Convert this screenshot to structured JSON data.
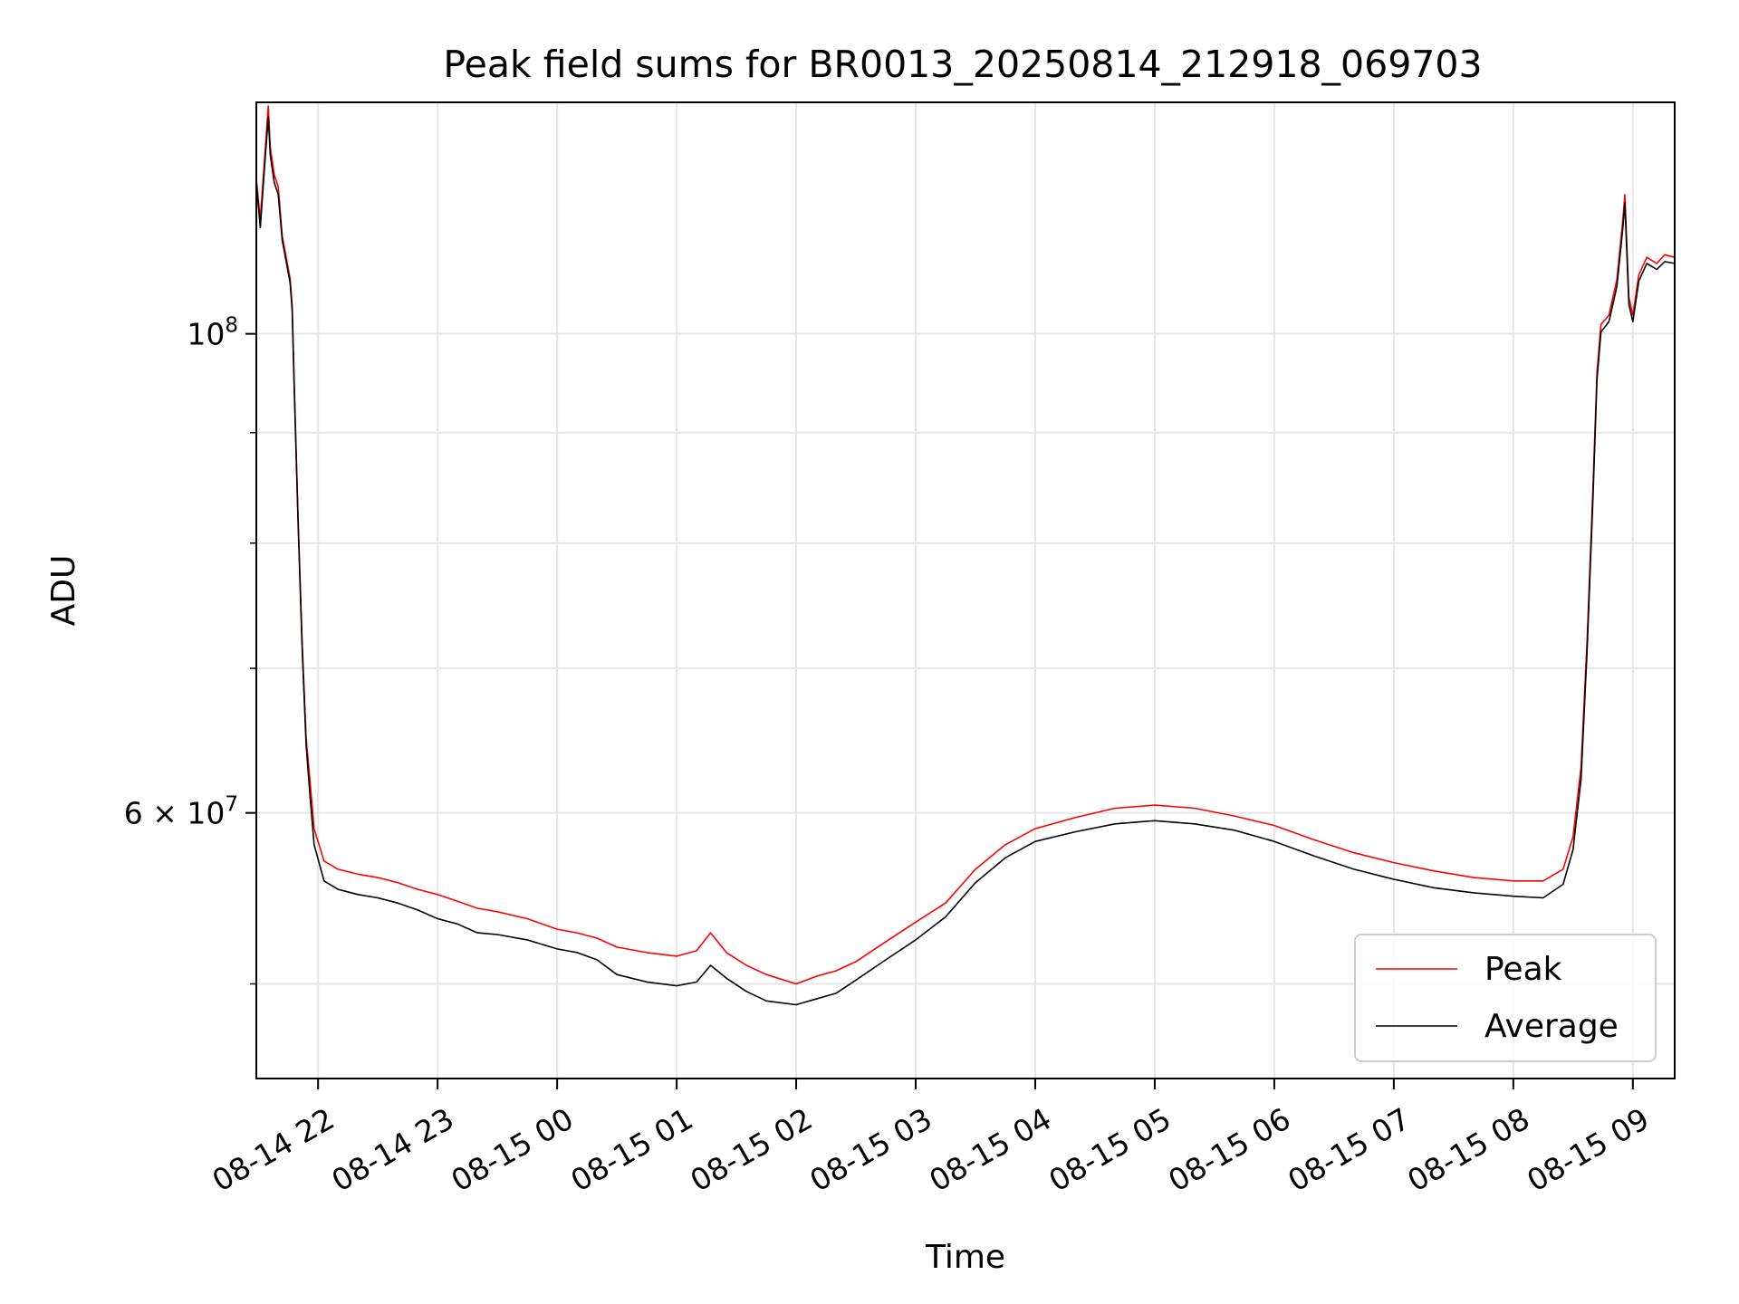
{
  "chart_data": {
    "type": "line",
    "title": "Peak field sums for BR0013_20250814_212918_069703",
    "xlabel": "Time",
    "ylabel": "ADU",
    "yscale": "log",
    "ylim": [
      45200000,
      128000000
    ],
    "xlim": [
      "2025-08-14 21:29",
      "2025-08-15 09:21"
    ],
    "grid": true,
    "legend_position": "lower-right",
    "x_tick_labels": [
      "08-14 22",
      "08-14 23",
      "08-15 00",
      "08-15 01",
      "08-15 02",
      "08-15 03",
      "08-15 04",
      "08-15 05",
      "08-15 06",
      "08-15 07",
      "08-15 08",
      "08-15 09"
    ],
    "x_tick_values": [
      "2025-08-14 22:00",
      "2025-08-14 23:00",
      "2025-08-15 00:00",
      "2025-08-15 01:00",
      "2025-08-15 02:00",
      "2025-08-15 03:00",
      "2025-08-15 04:00",
      "2025-08-15 05:00",
      "2025-08-15 06:00",
      "2025-08-15 07:00",
      "2025-08-15 08:00",
      "2025-08-15 09:00"
    ],
    "y_major_ticks": [
      {
        "value": 100000000,
        "mantissa": "",
        "exponent": "8"
      },
      {
        "value": 60000000,
        "mantissa": "6 × ",
        "exponent": "7"
      }
    ],
    "y_minor_ticks": [
      50000000,
      70000000,
      80000000,
      90000000
    ],
    "series": [
      {
        "name": "Peak",
        "color": "#ff0000",
        "points": [
          [
            "2025-08-14 21:29",
            118000000
          ],
          [
            "2025-08-14 21:31",
            113000000
          ],
          [
            "2025-08-14 21:33",
            120000000
          ],
          [
            "2025-08-14 21:35",
            127500000
          ],
          [
            "2025-08-14 21:36",
            122000000
          ],
          [
            "2025-08-14 21:38",
            118500000
          ],
          [
            "2025-08-14 21:40",
            117000000
          ],
          [
            "2025-08-14 21:42",
            111000000
          ],
          [
            "2025-08-14 21:44",
            108500000
          ],
          [
            "2025-08-14 21:46",
            106000000
          ],
          [
            "2025-08-14 21:47",
            103000000
          ],
          [
            "2025-08-14 21:48",
            95000000
          ],
          [
            "2025-08-14 21:50",
            82000000
          ],
          [
            "2025-08-14 21:52",
            72000000
          ],
          [
            "2025-08-14 21:54",
            65000000
          ],
          [
            "2025-08-14 21:56",
            62000000
          ],
          [
            "2025-08-14 21:58",
            59000000
          ],
          [
            "2025-08-14 22:03",
            57000000
          ],
          [
            "2025-08-14 22:10",
            56500000
          ],
          [
            "2025-08-14 22:20",
            56200000
          ],
          [
            "2025-08-14 22:30",
            56000000
          ],
          [
            "2025-08-14 22:40",
            55700000
          ],
          [
            "2025-08-14 22:50",
            55300000
          ],
          [
            "2025-08-14 23:00",
            55000000
          ],
          [
            "2025-08-14 23:10",
            54600000
          ],
          [
            "2025-08-14 23:20",
            54200000
          ],
          [
            "2025-08-14 23:30",
            54000000
          ],
          [
            "2025-08-14 23:45",
            53600000
          ],
          [
            "2025-08-15 00:00",
            53000000
          ],
          [
            "2025-08-15 00:10",
            52800000
          ],
          [
            "2025-08-15 00:20",
            52500000
          ],
          [
            "2025-08-15 00:30",
            52000000
          ],
          [
            "2025-08-15 00:45",
            51700000
          ],
          [
            "2025-08-15 01:00",
            51500000
          ],
          [
            "2025-08-15 01:10",
            51800000
          ],
          [
            "2025-08-15 01:17",
            52800000
          ],
          [
            "2025-08-15 01:25",
            51700000
          ],
          [
            "2025-08-15 01:35",
            51000000
          ],
          [
            "2025-08-15 01:45",
            50500000
          ],
          [
            "2025-08-15 02:00",
            50000000
          ],
          [
            "2025-08-15 02:10",
            50400000
          ],
          [
            "2025-08-15 02:20",
            50700000
          ],
          [
            "2025-08-15 02:30",
            51200000
          ],
          [
            "2025-08-15 02:45",
            52300000
          ],
          [
            "2025-08-15 03:00",
            53400000
          ],
          [
            "2025-08-15 03:15",
            54500000
          ],
          [
            "2025-08-15 03:30",
            56500000
          ],
          [
            "2025-08-15 03:45",
            58000000
          ],
          [
            "2025-08-15 04:00",
            59000000
          ],
          [
            "2025-08-15 04:20",
            59700000
          ],
          [
            "2025-08-15 04:40",
            60300000
          ],
          [
            "2025-08-15 05:00",
            60500000
          ],
          [
            "2025-08-15 05:20",
            60300000
          ],
          [
            "2025-08-15 05:40",
            59800000
          ],
          [
            "2025-08-15 06:00",
            59200000
          ],
          [
            "2025-08-15 06:20",
            58300000
          ],
          [
            "2025-08-15 06:40",
            57500000
          ],
          [
            "2025-08-15 07:00",
            56900000
          ],
          [
            "2025-08-15 07:20",
            56400000
          ],
          [
            "2025-08-15 07:40",
            56000000
          ],
          [
            "2025-08-15 08:00",
            55800000
          ],
          [
            "2025-08-15 08:15",
            55800000
          ],
          [
            "2025-08-15 08:25",
            56500000
          ],
          [
            "2025-08-15 08:30",
            58500000
          ],
          [
            "2025-08-15 08:34",
            63000000
          ],
          [
            "2025-08-15 08:37",
            72000000
          ],
          [
            "2025-08-15 08:40",
            85000000
          ],
          [
            "2025-08-15 08:42",
            96000000
          ],
          [
            "2025-08-15 08:44",
            101000000
          ],
          [
            "2025-08-15 08:48",
            102000000
          ],
          [
            "2025-08-15 08:52",
            106000000
          ],
          [
            "2025-08-15 08:55",
            113000000
          ],
          [
            "2025-08-15 08:56",
            116000000
          ],
          [
            "2025-08-15 08:58",
            104000000
          ],
          [
            "2025-08-15 09:00",
            102000000
          ],
          [
            "2025-08-15 09:03",
            106500000
          ],
          [
            "2025-08-15 09:07",
            108500000
          ],
          [
            "2025-08-15 09:12",
            107800000
          ],
          [
            "2025-08-15 09:16",
            108800000
          ],
          [
            "2025-08-15 09:21",
            108500000
          ]
        ]
      },
      {
        "name": "Average",
        "color": "#000000",
        "points": [
          [
            "2025-08-14 21:29",
            117500000
          ],
          [
            "2025-08-14 21:31",
            112000000
          ],
          [
            "2025-08-14 21:33",
            119000000
          ],
          [
            "2025-08-14 21:35",
            126000000
          ],
          [
            "2025-08-14 21:36",
            121000000
          ],
          [
            "2025-08-14 21:38",
            117500000
          ],
          [
            "2025-08-14 21:40",
            116000000
          ],
          [
            "2025-08-14 21:42",
            110500000
          ],
          [
            "2025-08-14 21:44",
            108000000
          ],
          [
            "2025-08-14 21:46",
            105500000
          ],
          [
            "2025-08-14 21:47",
            102500000
          ],
          [
            "2025-08-14 21:48",
            94500000
          ],
          [
            "2025-08-14 21:50",
            81500000
          ],
          [
            "2025-08-14 21:52",
            71500000
          ],
          [
            "2025-08-14 21:54",
            64500000
          ],
          [
            "2025-08-14 21:56",
            61000000
          ],
          [
            "2025-08-14 21:58",
            58000000
          ],
          [
            "2025-08-14 22:03",
            55800000
          ],
          [
            "2025-08-14 22:10",
            55300000
          ],
          [
            "2025-08-14 22:20",
            55000000
          ],
          [
            "2025-08-14 22:30",
            54800000
          ],
          [
            "2025-08-14 22:40",
            54500000
          ],
          [
            "2025-08-14 22:50",
            54100000
          ],
          [
            "2025-08-14 23:00",
            53600000
          ],
          [
            "2025-08-14 23:10",
            53300000
          ],
          [
            "2025-08-14 23:20",
            52800000
          ],
          [
            "2025-08-14 23:30",
            52700000
          ],
          [
            "2025-08-14 23:45",
            52400000
          ],
          [
            "2025-08-15 00:00",
            51900000
          ],
          [
            "2025-08-15 00:10",
            51700000
          ],
          [
            "2025-08-15 00:20",
            51300000
          ],
          [
            "2025-08-15 00:30",
            50500000
          ],
          [
            "2025-08-15 00:45",
            50100000
          ],
          [
            "2025-08-15 01:00",
            49900000
          ],
          [
            "2025-08-15 01:10",
            50100000
          ],
          [
            "2025-08-15 01:17",
            51000000
          ],
          [
            "2025-08-15 01:25",
            50300000
          ],
          [
            "2025-08-15 01:35",
            49600000
          ],
          [
            "2025-08-15 01:45",
            49100000
          ],
          [
            "2025-08-15 02:00",
            48900000
          ],
          [
            "2025-08-15 02:10",
            49200000
          ],
          [
            "2025-08-15 02:20",
            49500000
          ],
          [
            "2025-08-15 02:30",
            50200000
          ],
          [
            "2025-08-15 02:45",
            51300000
          ],
          [
            "2025-08-15 03:00",
            52400000
          ],
          [
            "2025-08-15 03:15",
            53700000
          ],
          [
            "2025-08-15 03:30",
            55700000
          ],
          [
            "2025-08-15 03:45",
            57200000
          ],
          [
            "2025-08-15 04:00",
            58200000
          ],
          [
            "2025-08-15 04:20",
            58800000
          ],
          [
            "2025-08-15 04:40",
            59300000
          ],
          [
            "2025-08-15 05:00",
            59500000
          ],
          [
            "2025-08-15 05:20",
            59300000
          ],
          [
            "2025-08-15 05:40",
            58900000
          ],
          [
            "2025-08-15 06:00",
            58200000
          ],
          [
            "2025-08-15 06:20",
            57300000
          ],
          [
            "2025-08-15 06:40",
            56500000
          ],
          [
            "2025-08-15 07:00",
            55900000
          ],
          [
            "2025-08-15 07:20",
            55400000
          ],
          [
            "2025-08-15 07:40",
            55100000
          ],
          [
            "2025-08-15 08:00",
            54900000
          ],
          [
            "2025-08-15 08:15",
            54800000
          ],
          [
            "2025-08-15 08:25",
            55600000
          ],
          [
            "2025-08-15 08:30",
            57700000
          ],
          [
            "2025-08-15 08:34",
            62200000
          ],
          [
            "2025-08-15 08:37",
            71200000
          ],
          [
            "2025-08-15 08:40",
            84000000
          ],
          [
            "2025-08-15 08:42",
            95200000
          ],
          [
            "2025-08-15 08:44",
            100200000
          ],
          [
            "2025-08-15 08:48",
            101300000
          ],
          [
            "2025-08-15 08:52",
            105200000
          ],
          [
            "2025-08-15 08:55",
            112000000
          ],
          [
            "2025-08-15 08:56",
            115000000
          ],
          [
            "2025-08-15 08:58",
            103200000
          ],
          [
            "2025-08-15 09:00",
            101300000
          ],
          [
            "2025-08-15 09:03",
            105800000
          ],
          [
            "2025-08-15 09:07",
            107800000
          ],
          [
            "2025-08-15 09:12",
            107100000
          ],
          [
            "2025-08-15 09:16",
            108000000
          ],
          [
            "2025-08-15 09:21",
            107800000
          ]
        ]
      }
    ]
  }
}
